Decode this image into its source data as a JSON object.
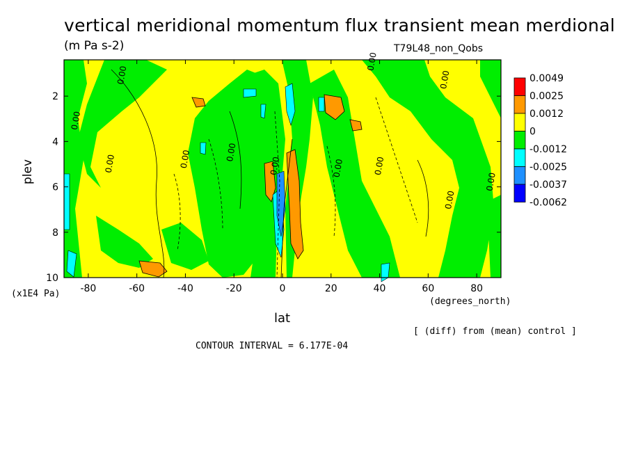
{
  "chart_data": {
    "type": "heatmap",
    "title": "vertical meridional momentum flux transient mean merdional",
    "units": "(m Pa s-2)",
    "run_label": "T79L48_non_Qobs",
    "xlabel": "lat",
    "xunits": "(degrees_north)",
    "ylabel": "plev",
    "yunits": "(x1E4 Pa)",
    "xlim": [
      -90,
      90
    ],
    "ylim": [
      10,
      0.4
    ],
    "y_inverted": true,
    "x_ticks": [
      -80,
      -60,
      -40,
      -20,
      0,
      20,
      40,
      60,
      80
    ],
    "y_ticks": [
      2,
      4,
      6,
      8,
      10
    ],
    "note": "[ (diff) from (mean) control ]",
    "contour_interval_text": "CONTOUR INTERVAL = 6.177E-04",
    "colorbar": {
      "labels": [
        "0.0049",
        "0.0025",
        "0.0012",
        "0",
        "-0.0012",
        "-0.0025",
        "-0.0037",
        "-0.0062"
      ],
      "colors": [
        "#ff0000",
        "#ff9900",
        "#ffff00",
        "#00ee00",
        "#00ffff",
        "#1e90ff",
        "#0000ff"
      ]
    },
    "contour_labels": [
      {
        "text": "0.00",
        "x": -65,
        "y": 1.1
      },
      {
        "text": "0.00",
        "x": 38,
        "y": 0.5
      },
      {
        "text": "0.00",
        "x": 68,
        "y": 1.3
      },
      {
        "text": "0.00",
        "x": -84,
        "y": 3.1
      },
      {
        "text": "0.00",
        "x": -70,
        "y": 5.0
      },
      {
        "text": "0.00",
        "x": -39,
        "y": 4.8
      },
      {
        "text": "0.00",
        "x": -20,
        "y": 4.5
      },
      {
        "text": "0.00",
        "x": -2,
        "y": 5.1
      },
      {
        "text": "0.00",
        "x": 24,
        "y": 5.2
      },
      {
        "text": "0.00",
        "x": 41,
        "y": 5.1
      },
      {
        "text": "0.00",
        "x": 70,
        "y": 6.6
      },
      {
        "text": "0.00",
        "x": 87,
        "y": 5.8
      }
    ]
  }
}
